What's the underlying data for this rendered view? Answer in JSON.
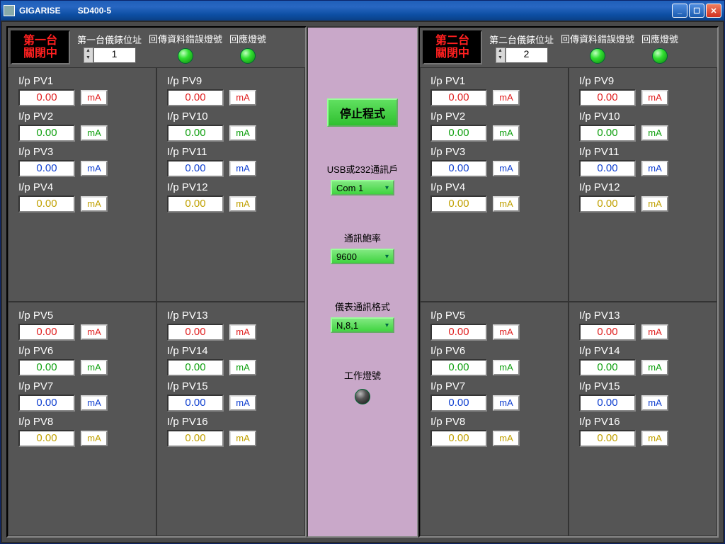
{
  "window": {
    "appname": "GIGARISE",
    "doc": "SD400-5"
  },
  "units": [
    {
      "statusLine1": "第一台",
      "statusLine2": "關閉中",
      "addrLabel": "第一台儀錶位址",
      "addrValue": "1",
      "errLabel": "回傳資料錯誤燈號",
      "respLabel": "回應燈號"
    },
    {
      "statusLine1": "第二台",
      "statusLine2": "關閉中",
      "addrLabel": "第二台儀錶位址",
      "addrValue": "2",
      "errLabel": "回傳資料錯誤燈號",
      "respLabel": "回應燈號"
    }
  ],
  "pvPattern": [
    {
      "value": "0.00",
      "unit": "mA",
      "valClass": "c-red",
      "unitClass": "c-red"
    },
    {
      "value": "0.00",
      "unit": "mA",
      "valClass": "c-green",
      "unitClass": "c-green"
    },
    {
      "value": "0.00",
      "unit": "mA",
      "valClass": "c-blue",
      "unitClass": "c-blue"
    },
    {
      "value": "0.00",
      "unit": "mA",
      "valClass": "c-yellow",
      "unitClass": "c-yellow"
    }
  ],
  "pvLabelPrefix": "I/p PV",
  "center": {
    "stopBtn": "停止程式",
    "portLabel": "USB或232通訊戶",
    "portValue": "Com 1",
    "baudLabel": "通訊鮑率",
    "baudValue": "9600",
    "fmtLabel": "儀表通訊格式",
    "fmtValue": "N,8,1",
    "workLedLabel": "工作燈號"
  },
  "layout": {
    "quads": [
      [
        1,
        2,
        3,
        4
      ],
      [
        9,
        10,
        11,
        12
      ],
      [
        5,
        6,
        7,
        8
      ],
      [
        13,
        14,
        15,
        16
      ]
    ]
  },
  "colors": {
    "bodyBg": "#555555",
    "centerBg": "#c9a8c9",
    "accentGreen": "#40d440",
    "statusRed": "#ff2020"
  }
}
